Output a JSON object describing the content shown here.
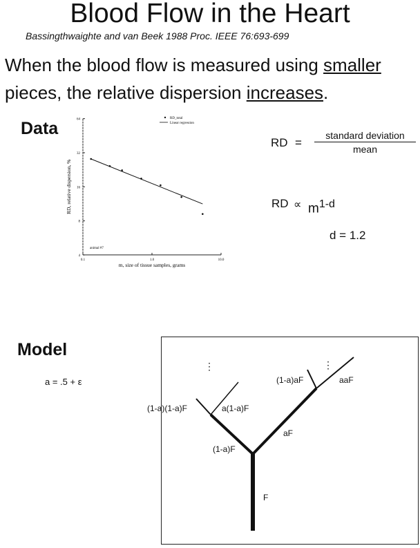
{
  "title": "Blood Flow in the Heart",
  "citation": "Bassingthwaighte and van Beek  1988  Proc. IEEE 76:693-699",
  "statement": {
    "line1_pre": "When the blood flow is measured using ",
    "line1_u": "smaller",
    "line2_pre": "pieces, the relative dispersion ",
    "line2_u": "increases",
    "line2_post": "."
  },
  "data_heading": "Data",
  "model_heading": "Model",
  "equations": {
    "rd": "RD",
    "equals": "=",
    "numerator": "standard deviation",
    "denominator": "mean",
    "rd2": "RD",
    "prop": "∝",
    "m": "m",
    "exp": "1-d",
    "d": "d = 1.2",
    "a": "a = .5 + ε"
  },
  "tree_labels": {
    "F": "F",
    "one_minus_a_F": "(1-a)F",
    "aF": "aF",
    "l2a": "(1-a)(1-a)F",
    "l2b": "a(1-a)F",
    "r2a": "(1-a)aF",
    "r2b": "aaF",
    "dots": "⋮"
  },
  "chart_data": {
    "type": "scatter",
    "xlabel": "m, size of tissue samples, grams",
    "ylabel": "RD, relative dispersion, %",
    "x_scale": "log",
    "y_scale": "log2",
    "xlim": [
      0.1,
      10
    ],
    "ylim": [
      4,
      64
    ],
    "x_ticks": [
      "0.1",
      "1.0",
      "10.0"
    ],
    "y_ticks": [
      "4",
      "8",
      "16",
      "32",
      "64"
    ],
    "annotation": "animal #7",
    "legend": {
      "position": "top-right",
      "entries": [
        "RD_total",
        "Linear regression"
      ]
    },
    "series": [
      {
        "name": "RD_total",
        "type": "scatter",
        "x": [
          0.131,
          0.245,
          0.369,
          0.7,
          1.33,
          2.67,
          5.41
        ],
        "y": [
          28.2,
          24.4,
          22.4,
          18.9,
          16.5,
          13.0,
          9.2
        ]
      },
      {
        "name": "Linear regression",
        "type": "line",
        "x": [
          0.131,
          5.41
        ],
        "y": [
          28.2,
          11.3
        ]
      }
    ]
  }
}
